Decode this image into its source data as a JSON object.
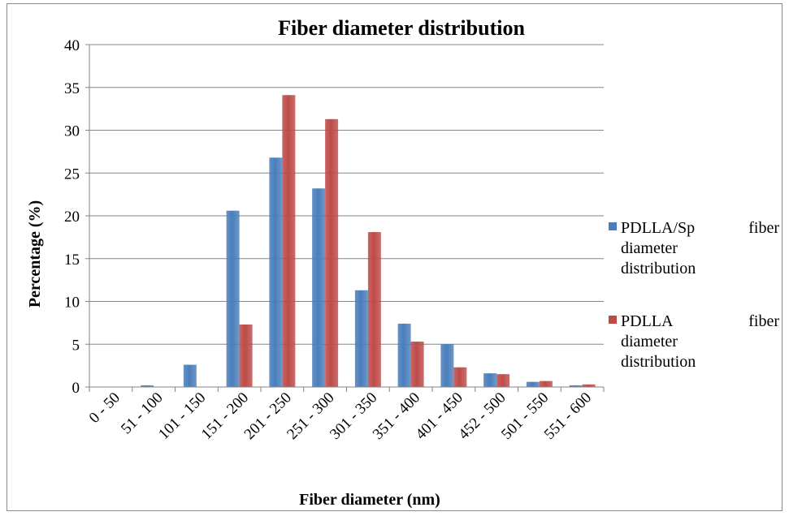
{
  "chart_data": {
    "type": "bar",
    "title": "Fiber diameter distribution",
    "xlabel": "Fiber diameter (nm)",
    "ylabel": "Percentage (%)",
    "ylim": [
      0,
      40
    ],
    "yticks": [
      0,
      5,
      10,
      15,
      20,
      25,
      30,
      35,
      40
    ],
    "grid": true,
    "legend_position": "right",
    "categories": [
      "0 - 50",
      "51 - 100",
      "101 - 150",
      "151 - 200",
      "201 - 250",
      "251 - 300",
      "301 - 350",
      "351 - 400",
      "401 - 450",
      "452 - 500",
      "501 - 550",
      "551 - 600"
    ],
    "series": [
      {
        "name": "PDLLA/Sp fiber diameter distribution",
        "legend_lines": [
          "PDLLA/Sp",
          "fiber",
          "diameter",
          "distribution"
        ],
        "color": "#4a7ebb",
        "values": [
          0,
          0.2,
          2.6,
          20.6,
          26.8,
          23.2,
          11.3,
          7.4,
          5.0,
          1.6,
          0.6,
          0.2
        ]
      },
      {
        "name": "PDLLA fiber diameter distribution",
        "legend_lines": [
          "PDLLA",
          "fiber",
          "diameter",
          "distribution"
        ],
        "color": "#be4b48",
        "values": [
          0,
          0,
          0,
          7.3,
          34.1,
          31.3,
          18.1,
          5.3,
          2.3,
          1.5,
          0.7,
          0.3
        ]
      }
    ]
  }
}
